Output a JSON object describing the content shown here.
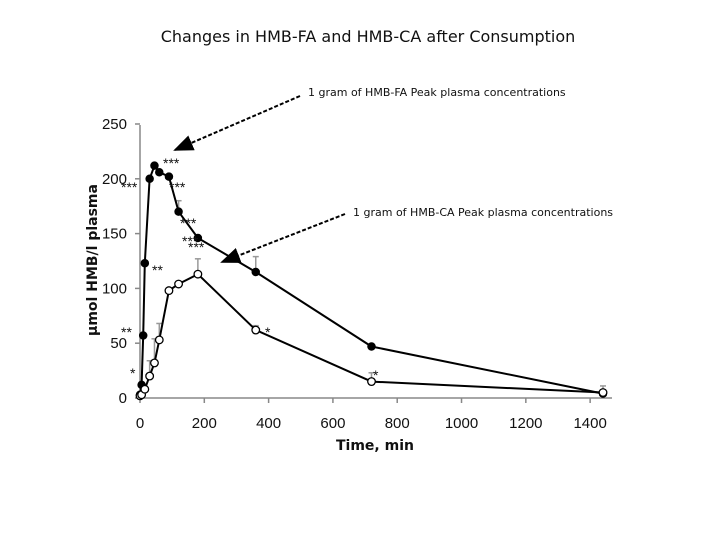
{
  "chart_data": {
    "type": "line",
    "title": "Changes in HMB-FA and HMB-CA after Consumption",
    "xlabel": "Time, min",
    "ylabel": "µmol  HMB/l plasma",
    "xlim": [
      0,
      1440
    ],
    "ylim": [
      0,
      250
    ],
    "xticks": [
      "0",
      "200",
      "400",
      "600",
      "800",
      "1000",
      "1200",
      "1400"
    ],
    "yticks": [
      "0",
      "50",
      "100",
      "150",
      "200",
      "250"
    ],
    "grid": false,
    "series": [
      {
        "marker": "filled-circle",
        "x": [
          0,
          5,
          10,
          15,
          30,
          45,
          60,
          90,
          120,
          180,
          360,
          720,
          1440
        ],
        "y": [
          3,
          12,
          57,
          123,
          200,
          212,
          206,
          202,
          170,
          146,
          115,
          47,
          4
        ]
      },
      {
        "marker": "open-circle",
        "x": [
          0,
          5,
          15,
          30,
          45,
          60,
          90,
          120,
          180,
          360,
          720,
          1440
        ],
        "y": [
          2,
          3,
          8,
          20,
          32,
          53,
          98,
          104,
          113,
          62,
          15,
          5
        ]
      }
    ],
    "annotations": [
      {
        "text": "1 gram of HMB-FA Peak plasma concentrations"
      },
      {
        "text": "1 gram of HMB-CA Peak plasma concentrations"
      }
    ],
    "significance_labels": [
      "*",
      "**",
      "***",
      "***",
      "***",
      "***",
      "***",
      "**",
      "***",
      "*",
      "*"
    ]
  }
}
